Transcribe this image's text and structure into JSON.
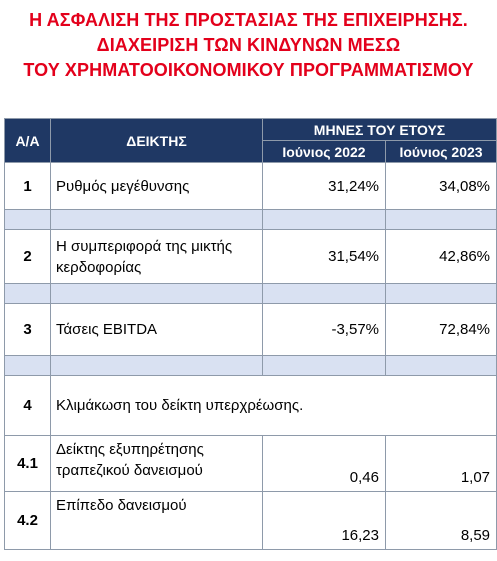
{
  "title": {
    "line1": "Η ΑΣΦΑΛΙΣΗ ΤΗΣ ΠΡΟΣΤΑΣΙΑΣ ΤΗΣ ΕΠΙΧΕΙΡΗΣΗΣ.",
    "line2": "ΔΙΑΧΕΙΡΙΣΗ ΤΩΝ ΚΙΝΔΥΝΩΝ ΜΕΣΩ",
    "line3": "ΤΟΥ ΧΡΗΜΑΤΟΟΙΚΟΝΟΜΙΚΟΥ ΠΡΟΓΡΑΜΜΑΤΙΣΜΟΥ"
  },
  "table": {
    "headers": {
      "aa": "Α/Α",
      "indicator": "ΔΕΙΚΤΗΣ",
      "months": "ΜΗΝΕΣ ΤΟΥ ΕΤΟΥΣ",
      "col1": "Ιούνιος 2022",
      "col2": "Ιούνιος 2023"
    },
    "rows": [
      {
        "aa": "1",
        "name": "Ρυθμός μεγέθυνσης",
        "v1": "31,24%",
        "v2": "34,08%"
      },
      {
        "aa": "2",
        "name_l1": "Η συμπεριφορά της μικτής",
        "name_l2": "κερδοφορίας",
        "v1": "31,54%",
        "v2": "42,86%"
      },
      {
        "aa": "3",
        "name": "Τάσεις EBITDA",
        "v1": "-3,57%",
        "v2": "72,84%"
      },
      {
        "aa": "4",
        "name": "Κλιμάκωση του δείκτη υπερχρέωσης."
      },
      {
        "aa": "4.1",
        "name_l1": "Δείκτης εξυπηρέτησης",
        "name_l2": "τραπεζικού δανεισμού",
        "v1": "0,46",
        "v2": "1,07"
      },
      {
        "aa": "4.2",
        "name": "Επίπεδο δανεισμού",
        "v1": "16,23",
        "v2": "8,59"
      }
    ]
  },
  "colors": {
    "title": "#e3001b",
    "header_bg": "#1f3864",
    "separator_bg": "#d9e1f2"
  }
}
